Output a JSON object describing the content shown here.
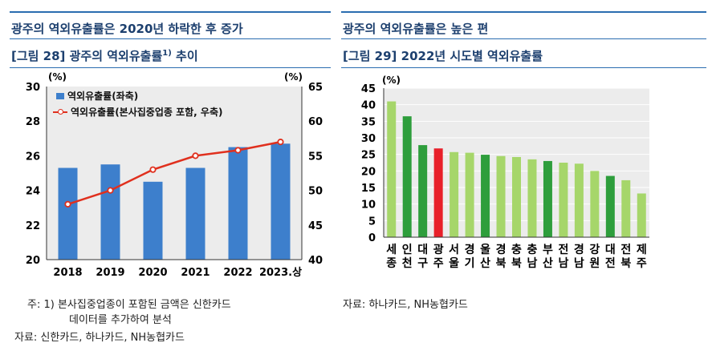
{
  "left": {
    "headline": "광주의 역외유출률은 2020년 하락한 후 증가",
    "fig_title": "[그림 28] 광주의 역외유출률",
    "fig_title_sup": "1)",
    "fig_title_tail": " 추이",
    "unit_left": "(%)",
    "unit_right": "(%)",
    "footnote_line1": "주: 1) 본사집중업종이 포함된 금액은 신한카드",
    "footnote_line2": "데이터를 추가하여 분석",
    "source": "자료: 신한카드, 하나카드, NH농협카드"
  },
  "right": {
    "headline": "광주의 역외유출률은 높은 편",
    "fig_title": "[그림 29] 2022년 시도별 역외유출률",
    "unit": "(%)",
    "source": "자료: 하나카드, NH농협카드"
  },
  "colors": {
    "title": "#1c3f6e",
    "rule": "#2a6db0",
    "bar_blue": "#3d7fcc",
    "line_red": "#e0301e",
    "plot_bg": "#ececec",
    "bar_light_green": "#a6d66a",
    "bar_dark_green": "#2e9e3c",
    "bar_red": "#e8202a"
  },
  "chart_data": [
    {
      "type": "bar+line",
      "title": "[그림 28] 광주의 역외유출률1) 추이",
      "categories": [
        "2018",
        "2019",
        "2020",
        "2021",
        "2022",
        "2023.상"
      ],
      "series": [
        {
          "name": "역외유출률(좌축)",
          "type": "bar",
          "axis": "left",
          "values": [
            25.3,
            25.5,
            24.5,
            25.3,
            26.5,
            26.7
          ]
        },
        {
          "name": "역외유출률(본사집중업종 포함, 우축)",
          "type": "line",
          "axis": "right",
          "values": [
            48.0,
            50.0,
            53.0,
            55.0,
            55.8,
            57.0
          ]
        }
      ],
      "ylim_left": [
        20,
        30
      ],
      "yticks_left": [
        "20",
        "22",
        "24",
        "26",
        "28",
        "30"
      ],
      "ylim_right": [
        40,
        65
      ],
      "yticks_right": [
        "40",
        "45",
        "50",
        "55",
        "60",
        "65"
      ],
      "legend": [
        "역외유출률(좌축)",
        "역외유출률(본사집중업종 포함, 우축)"
      ],
      "legend_position": "top-left",
      "ylabel_left": "(%)",
      "ylabel_right": "(%)"
    },
    {
      "type": "bar",
      "title": "[그림 29] 2022년 시도별 역외유출률",
      "categories": [
        "세종",
        "인천",
        "대구",
        "광주",
        "서울",
        "경기",
        "울산",
        "경북",
        "충북",
        "충남",
        "부산",
        "전남",
        "경남",
        "강원",
        "대전",
        "전북",
        "제주"
      ],
      "values": [
        41.0,
        36.5,
        27.8,
        26.8,
        25.7,
        25.5,
        24.9,
        24.5,
        24.2,
        23.5,
        23.0,
        22.5,
        22.2,
        20.0,
        18.5,
        17.2,
        13.2
      ],
      "highlight": {
        "광주": "red",
        "dark": [
          "인천",
          "대구",
          "울산",
          "부산",
          "대전"
        ]
      },
      "ylim": [
        0,
        45
      ],
      "yticks": [
        "0",
        "5",
        "10",
        "15",
        "20",
        "25",
        "30",
        "35",
        "40",
        "45"
      ],
      "ylabel": "(%)"
    }
  ]
}
